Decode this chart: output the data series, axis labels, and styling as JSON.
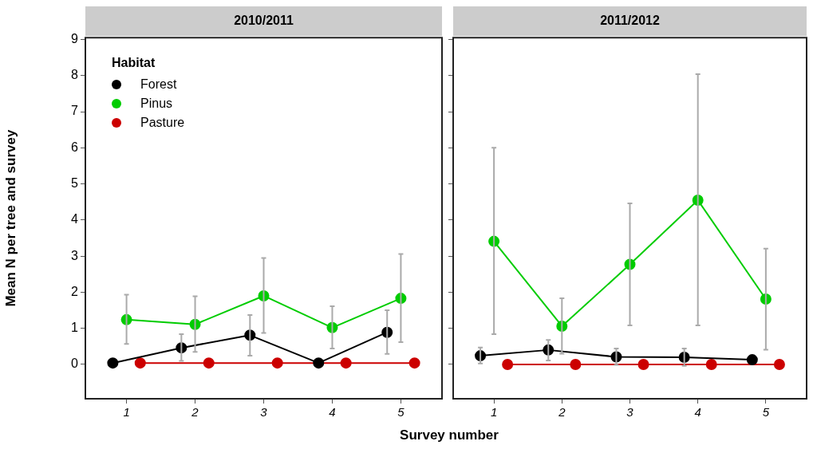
{
  "chart_data": [
    {
      "type": "line",
      "title": "2010/2011",
      "ylabel": "Mean N per tree and survey",
      "xlabel": "Survey number",
      "legend_title": "Habitat",
      "legend": "top left",
      "marker": "circle",
      "grid": false,
      "xlim": [
        0.4,
        5.6
      ],
      "xticks": [
        1,
        2,
        3,
        4,
        5
      ],
      "ylim": [
        -0.95,
        9.05
      ],
      "yticks": [
        0,
        1,
        2,
        3,
        4,
        5,
        6,
        7,
        8,
        9
      ],
      "series": [
        {
          "name": "Forest",
          "color": "#000000",
          "x": [
            0.8,
            1.8,
            2.8,
            3.8,
            4.8
          ],
          "values": [
            0.04,
            0.46,
            0.81,
            0.04,
            0.89
          ],
          "errors": [
            null,
            [
              0.1,
              0.84
            ],
            [
              0.24,
              1.37
            ],
            null,
            [
              0.29,
              1.5
            ]
          ]
        },
        {
          "name": "Pinus",
          "color": "#00cc00",
          "x": [
            1,
            2,
            3,
            4,
            5
          ],
          "values": [
            1.24,
            1.11,
            1.9,
            1.02,
            1.83
          ],
          "errors": [
            [
              0.57,
              1.93
            ],
            [
              0.35,
              1.89
            ],
            [
              0.87,
              2.95
            ],
            [
              0.44,
              1.61
            ],
            [
              0.62,
              3.06
            ]
          ]
        },
        {
          "name": "Pasture",
          "color": "#cc0000",
          "x": [
            1.2,
            2.2,
            3.2,
            4.2,
            5.2
          ],
          "values": [
            0.04,
            0.04,
            0.04,
            0.04,
            0.04
          ]
        }
      ]
    },
    {
      "type": "line",
      "title": "2011/2012",
      "tick_labels": "x",
      "marker": "circle",
      "grid": false,
      "xlim": [
        0.4,
        5.6
      ],
      "xticks": [
        1,
        2,
        3,
        4,
        5
      ],
      "ylim": [
        -0.95,
        9.05
      ],
      "yticks": [
        0,
        1,
        2,
        3,
        4,
        5,
        6,
        7,
        8,
        9
      ],
      "series": [
        {
          "color": "#000000",
          "x": [
            0.8,
            1.8,
            2.8,
            3.8,
            4.8
          ],
          "values": [
            0.24,
            0.4,
            0.21,
            0.2,
            0.13
          ],
          "errors": [
            [
              0.03,
              0.47
            ],
            [
              0.11,
              0.68
            ],
            [
              -0.01,
              0.44
            ],
            [
              -0.04,
              0.44
            ],
            null
          ]
        },
        {
          "color": "#00cc00",
          "x": [
            1,
            2,
            3,
            4,
            5
          ],
          "values": [
            3.41,
            1.06,
            2.77,
            4.55,
            1.81
          ],
          "errors": [
            [
              0.84,
              6.0
            ],
            [
              0.3,
              1.83
            ],
            [
              1.08,
              4.46
            ],
            [
              1.08,
              8.04
            ],
            [
              0.41,
              3.21
            ]
          ]
        },
        {
          "color": "#cc0000",
          "x": [
            1.2,
            2.2,
            3.2,
            4.2,
            5.2
          ],
          "values": [
            0,
            0,
            0,
            0,
            0
          ]
        }
      ]
    }
  ]
}
